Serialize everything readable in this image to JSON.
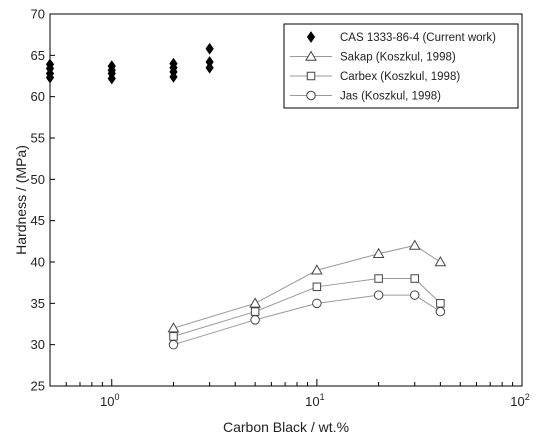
{
  "chart_data": {
    "type": "scatter",
    "title": "",
    "xlabel": "Carbon Black / wt.%",
    "ylabel": "Hardness / (MPa)",
    "x_scale": "log",
    "xlim": [
      0.5,
      100
    ],
    "ylim": [
      25,
      70
    ],
    "grid": false,
    "legend_position": "top-right",
    "y_ticks": [
      {
        "value": 25,
        "label": "25"
      },
      {
        "value": 30,
        "label": "30"
      },
      {
        "value": 35,
        "label": "35"
      },
      {
        "value": 40,
        "label": "40"
      },
      {
        "value": 45,
        "label": "45"
      },
      {
        "value": 50,
        "label": "50"
      },
      {
        "value": 55,
        "label": "55"
      },
      {
        "value": 60,
        "label": "60"
      },
      {
        "value": 65,
        "label": "65"
      },
      {
        "value": 70,
        "label": "70"
      }
    ],
    "x_major_ticks": [
      {
        "value": 1,
        "base": "10",
        "exp": "0"
      },
      {
        "value": 10,
        "base": "10",
        "exp": "1"
      },
      {
        "value": 100,
        "base": "10",
        "exp": "2"
      }
    ],
    "series": [
      {
        "name": "CAS 1333-86-4 (Current work)",
        "marker": "diamond-filled",
        "connected": false,
        "color": "#000000",
        "points": [
          {
            "x": 0.5,
            "y": 62.3
          },
          {
            "x": 0.5,
            "y": 62.8
          },
          {
            "x": 0.5,
            "y": 63.4
          },
          {
            "x": 0.5,
            "y": 63.9
          },
          {
            "x": 1,
            "y": 62.2
          },
          {
            "x": 1,
            "y": 62.8
          },
          {
            "x": 1,
            "y": 63.2
          },
          {
            "x": 1,
            "y": 63.7
          },
          {
            "x": 2,
            "y": 62.4
          },
          {
            "x": 2,
            "y": 63.0
          },
          {
            "x": 2,
            "y": 63.5
          },
          {
            "x": 2,
            "y": 64.0
          },
          {
            "x": 3,
            "y": 63.5
          },
          {
            "x": 3,
            "y": 64.2
          },
          {
            "x": 3,
            "y": 65.8
          }
        ]
      },
      {
        "name": "Sakap (Koszkul, 1998)",
        "marker": "triangle",
        "connected": true,
        "color": "#444444",
        "points": [
          {
            "x": 2,
            "y": 32
          },
          {
            "x": 5,
            "y": 35
          },
          {
            "x": 10,
            "y": 39
          },
          {
            "x": 20,
            "y": 41
          },
          {
            "x": 30,
            "y": 42
          },
          {
            "x": 40,
            "y": 40
          }
        ]
      },
      {
        "name": "Carbex (Koszkul, 1998)",
        "marker": "square",
        "connected": true,
        "color": "#444444",
        "points": [
          {
            "x": 2,
            "y": 31
          },
          {
            "x": 5,
            "y": 34
          },
          {
            "x": 10,
            "y": 37
          },
          {
            "x": 20,
            "y": 38
          },
          {
            "x": 30,
            "y": 38
          },
          {
            "x": 40,
            "y": 35
          }
        ]
      },
      {
        "name": "Jas (Koszkul, 1998)",
        "marker": "circle",
        "connected": true,
        "color": "#444444",
        "points": [
          {
            "x": 2,
            "y": 30
          },
          {
            "x": 5,
            "y": 33
          },
          {
            "x": 10,
            "y": 35
          },
          {
            "x": 20,
            "y": 36
          },
          {
            "x": 30,
            "y": 36
          },
          {
            "x": 40,
            "y": 34
          }
        ]
      }
    ]
  }
}
